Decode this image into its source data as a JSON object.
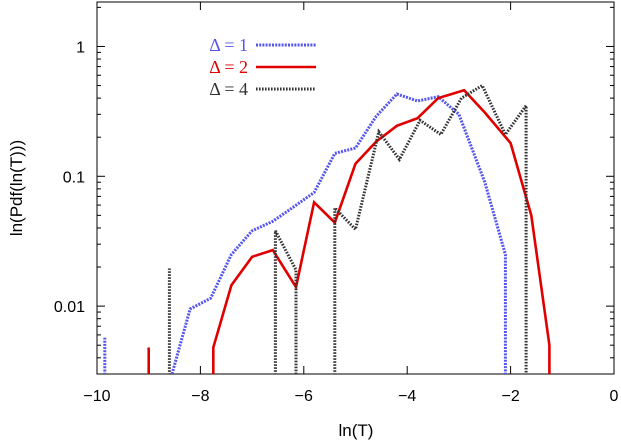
{
  "chart_data": {
    "type": "line",
    "title": "",
    "xlabel": "ln(T)",
    "ylabel": "ln(Pdf(ln(T)))",
    "xlim": [
      -10,
      0
    ],
    "ylim": [
      0.003,
      2.2
    ],
    "yscale": "log",
    "grid": false,
    "legend_position": "top-left",
    "x_ticks": [
      {
        "value": -10,
        "label": "−10"
      },
      {
        "value": -8,
        "label": "−8"
      },
      {
        "value": -6,
        "label": "−6"
      },
      {
        "value": -4,
        "label": "−4"
      },
      {
        "value": -2,
        "label": "−2"
      },
      {
        "value": 0,
        "label": "0"
      }
    ],
    "y_ticks": [
      {
        "value": 0.01,
        "label": "0.01"
      },
      {
        "value": 0.1,
        "label": "0.1"
      },
      {
        "value": 1,
        "label": "1"
      }
    ],
    "series": [
      {
        "name": "Δ = 1",
        "color": "#5555ee",
        "segments": [
          {
            "x": [
              -9.85,
              -9.85
            ],
            "y": [
              0.0028,
              0.0057
            ]
          },
          {
            "x": [
              -8.55,
              -8.2,
              -7.8,
              -7.4,
              -7.0,
              -6.6,
              -6.2,
              -5.8,
              -5.4,
              -5.0,
              -4.6,
              -4.2,
              -3.8,
              -3.4,
              -3.0,
              -2.5,
              -2.1,
              -2.1
            ],
            "y": [
              0.003,
              0.0095,
              0.0115,
              0.025,
              0.038,
              0.045,
              0.058,
              0.075,
              0.15,
              0.165,
              0.29,
              0.43,
              0.38,
              0.41,
              0.3,
              0.09,
              0.025,
              0.0028
            ]
          }
        ]
      },
      {
        "name": "Δ = 2",
        "color": "#e00000",
        "segments": [
          {
            "x": [
              -9.0,
              -9.0
            ],
            "y": [
              0.0028,
              0.0048
            ]
          },
          {
            "x": [
              -7.75,
              -7.75,
              -7.4,
              -7.0,
              -6.6,
              -6.15,
              -5.8,
              -5.4,
              -5.0,
              -4.6,
              -4.2,
              -3.8,
              -3.4,
              -2.9,
              -2.5,
              -2.0,
              -1.6,
              -1.25,
              -1.25
            ],
            "y": [
              0.0028,
              0.0048,
              0.0145,
              0.024,
              0.027,
              0.014,
              0.063,
              0.044,
              0.125,
              0.185,
              0.245,
              0.28,
              0.4,
              0.46,
              0.31,
              0.18,
              0.05,
              0.005,
              0.0028
            ]
          }
        ]
      },
      {
        "name": "Δ = 4",
        "color": "#333333",
        "segments": [
          {
            "x": [
              -8.6,
              -8.6
            ],
            "y": [
              0.0028,
              0.0195
            ]
          },
          {
            "x": [
              -6.55,
              -6.55,
              -6.15,
              -6.15
            ],
            "y": [
              0.0028,
              0.038,
              0.019,
              0.0028
            ]
          },
          {
            "x": [
              -5.4,
              -5.4,
              -5.0,
              -4.55,
              -4.15,
              -3.75,
              -3.35,
              -2.95,
              -2.55,
              -2.1,
              -1.7,
              -1.7
            ],
            "y": [
              0.0028,
              0.057,
              0.039,
              0.22,
              0.135,
              0.27,
              0.21,
              0.4,
              0.5,
              0.21,
              0.35,
              0.0028
            ]
          }
        ]
      }
    ]
  }
}
